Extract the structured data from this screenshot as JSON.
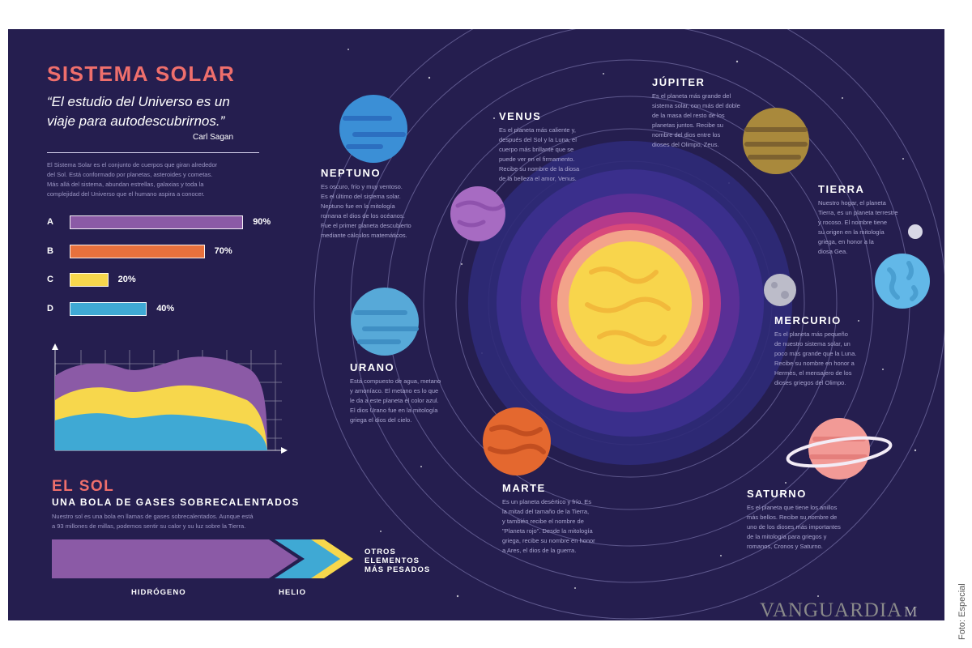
{
  "header": {
    "title": "SISTEMA SOLAR",
    "quote_line1": "“El estudio del Universo es un",
    "quote_line2": "viaje para autodescubrirnos.”",
    "author": "Carl Sagan"
  },
  "intro": {
    "l1": "El Sistema Solar es el conjunto de cuerpos que giran alrededor",
    "l2": "del Sol. Está conformado por planetas, asteroides y cometas.",
    "l3": "Más allá del sistema, abundan estrellas, galaxias y toda la",
    "l4": "complejidad del Universo que el humano aspira a conocer."
  },
  "chart_data": {
    "type": "bar",
    "categories": [
      "A",
      "B",
      "C",
      "D"
    ],
    "values": [
      90,
      70,
      20,
      40
    ],
    "value_labels": [
      "90%",
      "70%",
      "20%",
      "40%"
    ],
    "colors": [
      "#8b5aa6",
      "#e8713d",
      "#f7d74c",
      "#3fa9d4"
    ]
  },
  "sun": {
    "title": "EL SOL",
    "subtitle": "UNA BOLA DE GASES SOBRECALENTADOS",
    "text_line1": "Nuestro sol es una bola en llamas de gases sobrecalentados. Aunque está",
    "text_line2": "a 93 millones de millas, podemos sentir su calor y su luz sobre la Tierra.",
    "gas_labels": {
      "hydrogen": "HIDRÓGENO",
      "helium": "HELIO",
      "other_l1": "OTROS",
      "other_l2": "ELEMENTOS",
      "other_l3": "MÁS PESADOS"
    }
  },
  "planets": {
    "jupiter": {
      "name": "JÚPITER",
      "l1": "Es el planeta más grande del",
      "l2": "sistema solar, con más del doble",
      "l3": "de la masa del resto de los",
      "l4": "planetas juntos. Recibe su",
      "l5": "nombre del dios entre los",
      "l6": "dioses del Olimpo, Zeus."
    },
    "venus": {
      "name": "VENUS",
      "l1": "Es el planeta más caliente y,",
      "l2": "después del Sol y la Luna, el",
      "l3": "cuerpo más brillante que se",
      "l4": "puede ver en el firmamento.",
      "l5": "Recibe su nombre de la diosa",
      "l6": "de la belleza el amor, Venus."
    },
    "neptuno": {
      "name": "NEPTUNO",
      "l1": "Es oscuro, frío y muy ventoso.",
      "l2": "Es el último del sistema solar.",
      "l3": "Neptuno fue en la mitología",
      "l4": "romana el dios de los océanos.",
      "l5": "Fue el primer planeta descubierto",
      "l6": "mediante cálculos matemáticos."
    },
    "tierra": {
      "name": "TIERRA",
      "l1": "Nuestro hogar, el planeta",
      "l2": "Tierra, es un planeta terrestre",
      "l3": "y rocoso. El nombre tiene",
      "l4": "su origen en la mitología",
      "l5": "griega, en honor a la",
      "l6": "diosa Gea."
    },
    "mercurio": {
      "name": "MERCURIO",
      "l1": "Es el planeta más pequeño",
      "l2": "de nuestro sistema solar, un",
      "l3": "poco más grande que la Luna.",
      "l4": "Recibe su nombre en honor a",
      "l5": "Hermes, el mensajero de los",
      "l6": "dioses griegos del Olimpo."
    },
    "urano": {
      "name": "URANO",
      "l1": "Está compuesto de agua, metano",
      "l2": "y amoníaco. El metano es lo que",
      "l3": "le da a este planeta el color azul.",
      "l4": "El dios Urano fue en la mitología",
      "l5": "griega el dios del cielo."
    },
    "marte": {
      "name": "MARTE",
      "l1": "Es un planeta desértico y frío. Es",
      "l2": "la mitad del tamaño de la Tierra,",
      "l3": "y también recibe el nombre de",
      "l4": "\"Planeta rojo\". Desde la mitología",
      "l5": "griega, recibe su nombre en honor",
      "l6": "a Ares, el dios de la guerra."
    },
    "saturno": {
      "name": "SATURNO",
      "l1": "Es el planeta que tiene los anillos",
      "l2": "más bellos. Recibe su nombre de",
      "l3": "uno de los dioses más importantes",
      "l4": "de la mitología para griegos y",
      "l5": "romanos, Cronos y Saturno."
    }
  },
  "footer": {
    "watermark": "VANGUARDIA",
    "watermark_suffix": "M",
    "credit": "Foto: Especial"
  },
  "colors": {
    "background": "#251e4f",
    "title": "#ef6f6c",
    "purple": "#8b5aa6",
    "orange": "#e8713d",
    "yellow": "#f7d74c",
    "blue": "#3fa9d4"
  }
}
